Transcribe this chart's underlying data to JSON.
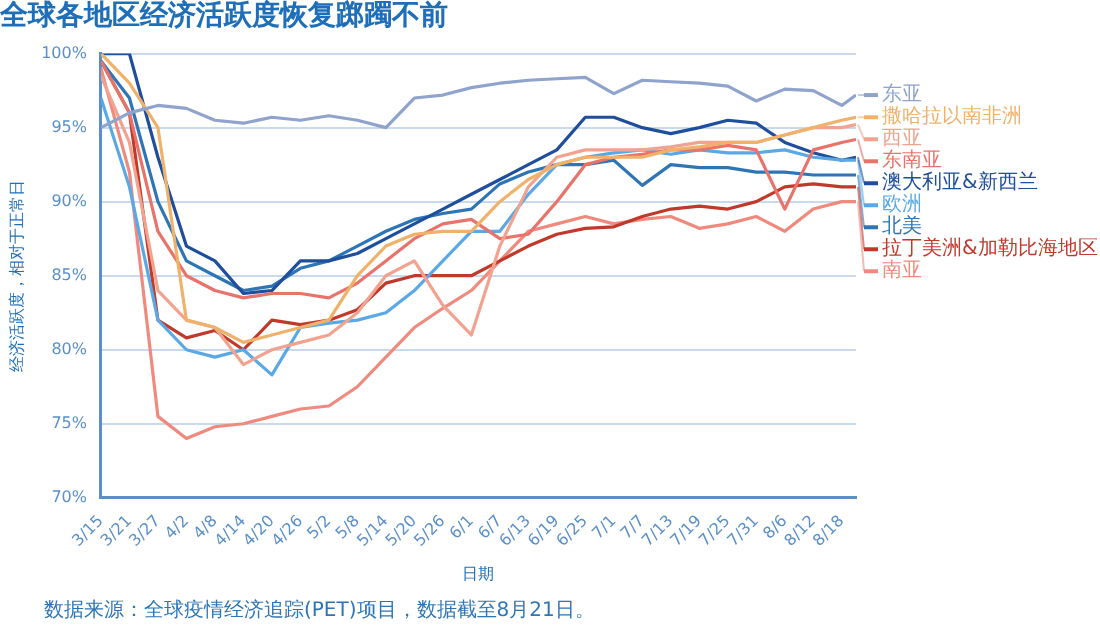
{
  "chart_data": {
    "type": "line",
    "title": "全球各地区经济活跃度恢复踯躅不前",
    "xlabel": "日期",
    "ylabel": "经济活跃度，相对于正常日",
    "annotations": [
      "数据来源：全球疫情经济追踪(PET)项目，数据截至8月21日。"
    ],
    "x": [
      "--03-15",
      "--03-21",
      "--03-27",
      "--04-02",
      "--04-08",
      "--04-14",
      "--04-20",
      "--04-26",
      "--05-02",
      "--05-08",
      "--05-14",
      "--05-20",
      "--05-26",
      "--06-01",
      "--06-07",
      "--06-13",
      "--06-19",
      "--06-25",
      "--07-01",
      "--07-07",
      "--07-13",
      "--07-19",
      "--07-25",
      "--07-31",
      "--08-06",
      "--08-12",
      "--08-18",
      "--08-21"
    ],
    "xlim": [
      "--03-15",
      "--08-21"
    ],
    "xticks": [
      {
        "value": "--03-15",
        "label": "3/15"
      },
      {
        "value": "--03-21",
        "label": "3/21"
      },
      {
        "value": "--03-27",
        "label": "3/27"
      },
      {
        "value": "--04-02",
        "label": "4/2"
      },
      {
        "value": "--04-08",
        "label": "4/8"
      },
      {
        "value": "--04-14",
        "label": "4/14"
      },
      {
        "value": "--04-20",
        "label": "4/20"
      },
      {
        "value": "--04-26",
        "label": "4/26"
      },
      {
        "value": "--05-02",
        "label": "5/2"
      },
      {
        "value": "--05-08",
        "label": "5/8"
      },
      {
        "value": "--05-14",
        "label": "5/14"
      },
      {
        "value": "--05-20",
        "label": "5/20"
      },
      {
        "value": "--05-26",
        "label": "5/26"
      },
      {
        "value": "--06-01",
        "label": "6/1"
      },
      {
        "value": "--06-07",
        "label": "6/7"
      },
      {
        "value": "--06-13",
        "label": "6/13"
      },
      {
        "value": "--06-19",
        "label": "6/19"
      },
      {
        "value": "--06-25",
        "label": "6/25"
      },
      {
        "value": "--07-01",
        "label": "7/1"
      },
      {
        "value": "--07-07",
        "label": "7/7"
      },
      {
        "value": "--07-13",
        "label": "7/13"
      },
      {
        "value": "--07-19",
        "label": "7/19"
      },
      {
        "value": "--07-25",
        "label": "7/25"
      },
      {
        "value": "--07-31",
        "label": "7/31"
      },
      {
        "value": "--08-06",
        "label": "8/6"
      },
      {
        "value": "--08-12",
        "label": "8/12"
      },
      {
        "value": "--08-18",
        "label": "8/18"
      }
    ],
    "ylim": [
      70,
      100
    ],
    "yticks": [
      {
        "value": 70,
        "label": "70%"
      },
      {
        "value": 75,
        "label": "75%"
      },
      {
        "value": 80,
        "label": "80%"
      },
      {
        "value": 85,
        "label": "85%"
      },
      {
        "value": 90,
        "label": "90%"
      },
      {
        "value": 95,
        "label": "95%"
      },
      {
        "value": 100,
        "label": "100%"
      }
    ],
    "grid": "y",
    "legend": "right",
    "marker": "none",
    "line_style": "solid",
    "series": [
      {
        "name": "东亚",
        "color": "#8fa3cc",
        "values": [
          95,
          96,
          96.5,
          96.3,
          95.5,
          95.3,
          95.7,
          95.5,
          95.8,
          95.5,
          95,
          97,
          97.2,
          97.7,
          98,
          98.2,
          98.3,
          98.4,
          97.3,
          98.2,
          98.1,
          98,
          97.8,
          96.8,
          97.6,
          97.5,
          96.5,
          97.2
        ]
      },
      {
        "name": "撒哈拉以南非洲",
        "color": "#f0b26a",
        "values": [
          100,
          98,
          95,
          82,
          81.5,
          80.5,
          81,
          81.5,
          82,
          85,
          87,
          87.8,
          88,
          88,
          90,
          91.5,
          92.5,
          93,
          93,
          93,
          93.5,
          93.7,
          94,
          94,
          94.5,
          95,
          95.5,
          95.7
        ]
      },
      {
        "name": "西亚",
        "color": "#f2a38f",
        "values": [
          98.5,
          94,
          84,
          82,
          81.5,
          79,
          80,
          80.5,
          81,
          82.5,
          85,
          86,
          83,
          81,
          87,
          91,
          93,
          93.5,
          93.5,
          93.5,
          93.7,
          94,
          94,
          94,
          94.5,
          95,
          95,
          95.2
        ]
      },
      {
        "name": "东南亚",
        "color": "#e8736b",
        "values": [
          99.5,
          96,
          88,
          85,
          84,
          83.5,
          83.8,
          83.8,
          83.5,
          84.5,
          86,
          87.5,
          88.5,
          88.8,
          87.5,
          87.8,
          90,
          92.5,
          93,
          93.2,
          93.5,
          93.5,
          93.8,
          93.5,
          89.5,
          93.5,
          94,
          94.2
        ]
      },
      {
        "name": "欧洲",
        "color": "#5aa9e6",
        "values": [
          97,
          91,
          82,
          80,
          79.5,
          80,
          78.3,
          81.5,
          81.8,
          82,
          82.5,
          84,
          86,
          88,
          88,
          90.5,
          92.5,
          93,
          93.3,
          93.5,
          93.2,
          93.5,
          93.3,
          93.3,
          93.5,
          93,
          92.8,
          92.8
        ]
      },
      {
        "name": "澳大利亚&新西兰",
        "color": "#1f4e9c",
        "values": [
          100,
          100,
          93,
          87,
          86,
          83.8,
          84,
          86,
          86,
          86.5,
          87.5,
          88.5,
          89.5,
          90.5,
          91.5,
          92.5,
          93.5,
          95.7,
          95.7,
          95,
          94.6,
          95,
          95.5,
          95.3,
          94,
          93.3,
          92.8,
          93
        ]
      },
      {
        "name": "北美",
        "color": "#2e75b6",
        "values": [
          99.5,
          97,
          90,
          86,
          85,
          84,
          84.3,
          85.5,
          86,
          87,
          88,
          88.8,
          89.2,
          89.5,
          91.2,
          92,
          92.5,
          92.5,
          92.8,
          91.1,
          92.5,
          92.3,
          92.3,
          92,
          92,
          91.8,
          91.8,
          91.8
        ]
      },
      {
        "name": "拉丁美洲&加勒比海地区",
        "color": "#c0392b",
        "values": [
          99.5,
          96,
          82,
          80.8,
          81.3,
          80,
          82,
          81.7,
          82,
          82.7,
          84.5,
          85,
          85,
          85,
          86,
          87,
          87.8,
          88.2,
          88.3,
          89,
          89.5,
          89.7,
          89.5,
          90,
          91,
          91.2,
          91,
          91
        ]
      },
      {
        "name": "南亚",
        "color": "#f08a7e",
        "values": [
          99,
          92,
          75.5,
          74,
          74.8,
          75,
          75.5,
          76,
          76.2,
          77.5,
          79.5,
          81.5,
          82.8,
          84,
          86,
          88,
          88.5,
          89,
          88.5,
          88.8,
          89,
          88.2,
          88.5,
          89,
          88,
          89.5,
          90,
          90
        ]
      }
    ]
  }
}
